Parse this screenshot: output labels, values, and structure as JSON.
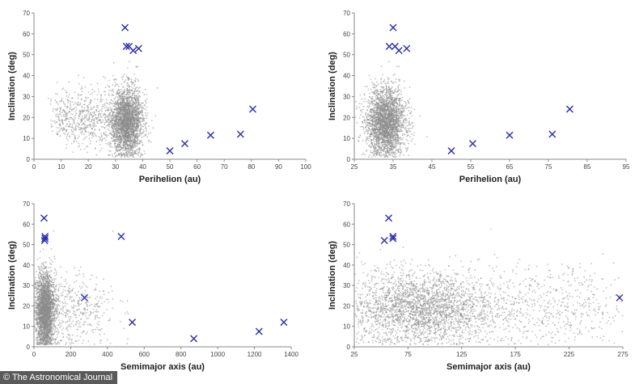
{
  "credit": "© The Astronomical Journal",
  "chart_data": [
    {
      "type": "scatter",
      "xlabel": "Perihelion (au)",
      "ylabel": "Inclination (deg)",
      "xlim": [
        0,
        100
      ],
      "ylim": [
        0,
        70
      ],
      "xticks": [
        0,
        10,
        20,
        30,
        40,
        50,
        60,
        70,
        80,
        90,
        100
      ],
      "yticks": [
        0,
        10,
        20,
        30,
        40,
        50,
        60,
        70
      ],
      "grid": false,
      "background": {
        "color": "#8c8c8c",
        "clusters": [
          {
            "x_center": 34,
            "x_spread": 3,
            "y_center": 18,
            "y_spread": 8,
            "count": 2600
          },
          {
            "x_center": 20,
            "x_spread": 5,
            "y_center": 20,
            "y_spread": 7,
            "count": 450
          },
          {
            "x_center": 10,
            "x_spread": 2,
            "y_center": 20,
            "y_spread": 6,
            "count": 120
          }
        ]
      },
      "series": [
        {
          "color": "#2b2bb0",
          "points": [
            [
              33.5,
              63
            ],
            [
              34,
              54
            ],
            [
              35,
              54
            ],
            [
              36.5,
              52
            ],
            [
              38.5,
              53
            ],
            [
              50,
              4
            ],
            [
              55.5,
              7.5
            ],
            [
              65,
              11.5
            ],
            [
              76,
              12
            ],
            [
              80.5,
              24
            ]
          ]
        }
      ]
    },
    {
      "type": "scatter",
      "xlabel": "Perihelion (au)",
      "ylabel": "Inclination (deg)",
      "xlim": [
        25,
        95
      ],
      "ylim": [
        0,
        70
      ],
      "xticks": [
        25,
        35,
        45,
        55,
        65,
        75,
        85,
        95
      ],
      "yticks": [
        0,
        10,
        20,
        30,
        40,
        50,
        60,
        70
      ],
      "grid": false,
      "background": {
        "color": "#8c8c8c",
        "clusters": [
          {
            "x_center": 33,
            "x_spread": 2.5,
            "y_center": 18,
            "y_spread": 8,
            "count": 2600
          }
        ]
      },
      "series": [
        {
          "color": "#2b2bb0",
          "points": [
            [
              35,
              63
            ],
            [
              34,
              54
            ],
            [
              35.5,
              54
            ],
            [
              36.5,
              52
            ],
            [
              38.5,
              53
            ],
            [
              50,
              4
            ],
            [
              55.5,
              7.5
            ],
            [
              65,
              11.5
            ],
            [
              76,
              12
            ],
            [
              80.5,
              24
            ]
          ]
        }
      ]
    },
    {
      "type": "scatter",
      "xlabel": "Semimajor axis (au)",
      "ylabel": "Inclination (deg)",
      "xlim": [
        0,
        1400
      ],
      "ylim": [
        0,
        70
      ],
      "xticks": [
        0,
        200,
        400,
        600,
        800,
        1000,
        1200,
        1400
      ],
      "yticks": [
        0,
        10,
        20,
        30,
        40,
        50,
        60,
        70
      ],
      "grid": false,
      "background": {
        "color": "#8c8c8c",
        "clusters": [
          {
            "x_center": 60,
            "x_spread": 25,
            "y_center": 18,
            "y_spread": 9,
            "count": 2500
          },
          {
            "x_center": 200,
            "x_spread": 120,
            "y_center": 18,
            "y_spread": 9,
            "count": 500
          }
        ]
      },
      "series": [
        {
          "color": "#2b2bb0",
          "points": [
            [
              55,
              63
            ],
            [
              60,
              54
            ],
            [
              60,
              53
            ],
            [
              58,
              52
            ],
            [
              475,
              54
            ],
            [
              275,
              24
            ],
            [
              535,
              12
            ],
            [
              870,
              4
            ],
            [
              1225,
              7.5
            ],
            [
              1360,
              12
            ]
          ]
        }
      ]
    },
    {
      "type": "scatter",
      "xlabel": "Semimajor axis (au)",
      "ylabel": "Inclination (deg)",
      "xlim": [
        25,
        275
      ],
      "ylim": [
        0,
        70
      ],
      "xticks": [
        25,
        75,
        125,
        175,
        225,
        275
      ],
      "yticks": [
        0,
        10,
        20,
        30,
        40,
        50,
        60,
        70
      ],
      "grid": false,
      "background": {
        "color": "#8c8c8c",
        "clusters": [
          {
            "x_center": 85,
            "x_spread": 35,
            "y_center": 19,
            "y_spread": 9,
            "count": 2600
          },
          {
            "x_center": 200,
            "x_spread": 50,
            "y_center": 20,
            "y_spread": 10,
            "count": 700
          }
        ]
      },
      "series": [
        {
          "color": "#2b2bb0",
          "points": [
            [
              53,
              52
            ],
            [
              57,
              63
            ],
            [
              61,
              54
            ],
            [
              61,
              53
            ],
            [
              272,
              24
            ]
          ]
        }
      ]
    }
  ]
}
